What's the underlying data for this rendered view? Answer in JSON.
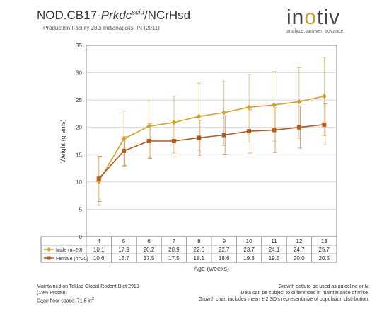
{
  "header": {
    "title_prefix": "NOD.CB17-",
    "title_gene": "Prkdc",
    "title_sup": "scid",
    "title_suffix": "/NCrHsd",
    "subtitle": "Production Facility 282i Indianapolis, IN (2011)"
  },
  "logo": {
    "word_a": "in",
    "word_o": "o",
    "word_b": "tiv",
    "tagline": "analyze. answer. advance."
  },
  "colors": {
    "male": "#d4a22a",
    "female": "#b35a1f",
    "grid": "#cccccc",
    "axis": "#666666",
    "error": "#d9b66a"
  },
  "chart_data": {
    "type": "line",
    "title": "",
    "xlabel": "Age (weeks)",
    "ylabel": "Weight (grams)",
    "ylim": [
      0,
      35
    ],
    "yticks": [
      0,
      5,
      10,
      15,
      20,
      25,
      30,
      35
    ],
    "grid": true,
    "categories": [
      "4",
      "5",
      "6",
      "7",
      "8",
      "9",
      "10",
      "11",
      "12",
      "13"
    ],
    "series": [
      {
        "name": "Male (n=20)",
        "values": [
          10.1,
          17.9,
          20.2,
          20.9,
          22.0,
          22.7,
          23.7,
          24.1,
          24.7,
          25.7
        ],
        "labels": [
          "10.1",
          "17.9",
          "20.2",
          "20.9",
          "22.0",
          "22.7",
          "23.7",
          "24.1",
          "24.7",
          "25.7"
        ],
        "error_low": [
          5.8,
          12.9,
          14.5,
          15.3,
          15.8,
          16.7,
          17.3,
          17.5,
          18.0,
          18.5
        ],
        "error_high": [
          14.6,
          23.0,
          25.0,
          25.7,
          28.1,
          28.4,
          29.7,
          30.3,
          30.9,
          32.8
        ],
        "marker": "diamond"
      },
      {
        "name": "Female (n=20)",
        "values": [
          10.6,
          15.7,
          17.5,
          17.5,
          18.1,
          18.6,
          19.3,
          19.5,
          20.0,
          20.5
        ],
        "labels": [
          "10.6",
          "15.7",
          "17.5",
          "17.5",
          "18.1",
          "18.6",
          "19.3",
          "19.5",
          "20.0",
          "20.5"
        ],
        "error_low": [
          6.4,
          13.0,
          14.3,
          14.6,
          14.9,
          15.1,
          15.3,
          15.4,
          16.2,
          16.8
        ],
        "error_high": [
          14.7,
          18.3,
          20.7,
          20.4,
          21.3,
          22.1,
          23.3,
          23.6,
          23.9,
          24.3
        ],
        "marker": "square"
      }
    ]
  },
  "footer": {
    "left_1": "Maintained on Teklad Global Rodent Diet 2919",
    "left_2": "(19% Protein)",
    "left_3": "Cage floor space: 71.5 in",
    "left_3_sup": "2",
    "right_1": "Growth data to be used as guideline only.",
    "right_2": "Data can be subject to differences in maintenance of mice.",
    "right_3": "Growth chart includes mean ± 2 SD's representative of population distribution."
  }
}
